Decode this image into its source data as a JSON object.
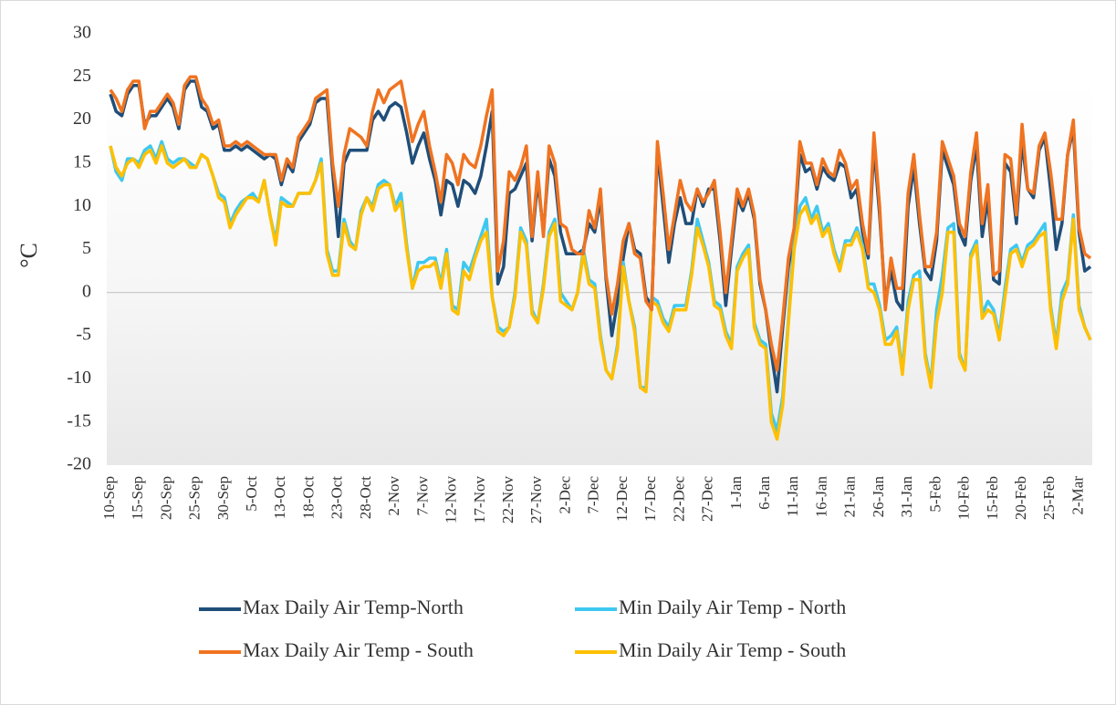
{
  "chart_data": {
    "type": "line",
    "ylabel": "°C",
    "ylim": [
      -20,
      30
    ],
    "yticks": [
      -20,
      -15,
      -10,
      -5,
      0,
      5,
      10,
      15,
      20,
      25,
      30
    ],
    "categories": [
      "10-Sep",
      null,
      null,
      null,
      null,
      "15-Sep",
      null,
      null,
      null,
      null,
      "20-Sep",
      null,
      null,
      null,
      null,
      "25-Sep",
      null,
      null,
      null,
      null,
      "30-Sep",
      null,
      null,
      null,
      null,
      "5-Oct",
      null,
      null,
      null,
      null,
      "13-Oct",
      null,
      null,
      null,
      null,
      "18-Oct",
      null,
      null,
      null,
      null,
      "23-Oct",
      null,
      null,
      null,
      null,
      "28-Oct",
      null,
      null,
      null,
      null,
      "2-Nov",
      null,
      null,
      null,
      null,
      "7-Nov",
      null,
      null,
      null,
      null,
      "12-Nov",
      null,
      null,
      null,
      null,
      "17-Nov",
      null,
      null,
      null,
      null,
      "22-Nov",
      null,
      null,
      null,
      null,
      "27-Nov",
      null,
      null,
      null,
      null,
      "2-Dec",
      null,
      null,
      null,
      null,
      "7-Dec",
      null,
      null,
      null,
      null,
      "12-Dec",
      null,
      null,
      null,
      null,
      "17-Dec",
      null,
      null,
      null,
      null,
      "22-Dec",
      null,
      null,
      null,
      null,
      "27-Dec",
      null,
      null,
      null,
      null,
      "1-Jan",
      null,
      null,
      null,
      null,
      "6-Jan",
      null,
      null,
      null,
      null,
      "11-Jan",
      null,
      null,
      null,
      null,
      "16-Jan",
      null,
      null,
      null,
      null,
      "21-Jan",
      null,
      null,
      null,
      null,
      "26-Jan",
      null,
      null,
      null,
      null,
      "31-Jan",
      null,
      null,
      null,
      null,
      "5-Feb",
      null,
      null,
      null,
      null,
      "10-Feb",
      null,
      null,
      null,
      null,
      "15-Feb",
      null,
      null,
      null,
      null,
      "20-Feb",
      null,
      null,
      null,
      null,
      "25-Feb",
      null,
      null,
      null,
      null,
      "2-Mar",
      null,
      null
    ],
    "series": [
      {
        "name": "Max Daily Air Temp-North",
        "color": "#1f4e79",
        "values": [
          23,
          21,
          20.5,
          23,
          24,
          24,
          19.5,
          20.5,
          20.5,
          21.5,
          22.5,
          21.5,
          19,
          23.5,
          24.5,
          24.5,
          21.5,
          21,
          19,
          19.5,
          16.5,
          16.5,
          17,
          16.5,
          17,
          16.5,
          16,
          15.5,
          16,
          15.5,
          12.5,
          15,
          14,
          17.5,
          18.5,
          19.5,
          22,
          22.5,
          22.5,
          14,
          6.5,
          15,
          16.5,
          16.5,
          16.5,
          16.5,
          20,
          21,
          20,
          21.5,
          22,
          21.5,
          18.5,
          15,
          17,
          18.5,
          15.5,
          13,
          9,
          13,
          12.5,
          10,
          13,
          12.5,
          11.5,
          13.5,
          17,
          21,
          1,
          3,
          11.5,
          12,
          13.5,
          15,
          6,
          13,
          7,
          15.5,
          13.5,
          7,
          4.5,
          4.5,
          4.5,
          5,
          8,
          7,
          11,
          1.5,
          -5,
          -1,
          4,
          8,
          5,
          4.5,
          -0.5,
          -1.5,
          16.5,
          10,
          3.5,
          8,
          11,
          8,
          8,
          12,
          10,
          12,
          12,
          6,
          -1.5,
          5,
          11,
          9.5,
          11.5,
          8.5,
          1,
          -2,
          -7,
          -11.5,
          -4,
          3,
          7,
          16,
          14,
          14.5,
          12,
          14.5,
          13.5,
          13,
          15,
          14.5,
          11,
          12,
          7,
          4,
          17,
          9,
          -1,
          2.5,
          -1,
          -2,
          10,
          14.5,
          8,
          2.5,
          1.5,
          6,
          16.5,
          14.5,
          12.5,
          7,
          5.5,
          13,
          17,
          6.5,
          11,
          1.5,
          1,
          15,
          14,
          8,
          17.5,
          12,
          11,
          16.5,
          18,
          12,
          5,
          8,
          16,
          19,
          7,
          2.5,
          3
        ]
      },
      {
        "name": "Min Daily Air Temp - North",
        "color": "#3ec8f0",
        "values": [
          17,
          14,
          13,
          15.5,
          15.5,
          15,
          16.5,
          17,
          15.5,
          17.5,
          15.5,
          15,
          15.5,
          15.5,
          15,
          14.5,
          16,
          15.5,
          13.5,
          11.5,
          11,
          8,
          9.5,
          10.5,
          11,
          11.5,
          10.5,
          13,
          9,
          6,
          11,
          10.5,
          10,
          11.5,
          11.5,
          11.5,
          13,
          15.5,
          5,
          2.5,
          2.5,
          8.5,
          6,
          5,
          9.5,
          11,
          10,
          12.5,
          13,
          12.5,
          10,
          11.5,
          5.5,
          0.5,
          3.5,
          3.5,
          4,
          4,
          1,
          5,
          -1.5,
          -2,
          3.5,
          2.5,
          4.5,
          6.5,
          8.5,
          -0.5,
          -4,
          -4.5,
          -4,
          0,
          7.5,
          6,
          -2,
          -3.5,
          1,
          7,
          8.5,
          0,
          -1,
          -2,
          0,
          5,
          1.5,
          1,
          -5,
          -9,
          -10,
          -6,
          3.5,
          -1,
          -4,
          -11,
          -11,
          -0.5,
          -1,
          -3,
          -4,
          -1.5,
          -1.5,
          -1.5,
          2.5,
          8.5,
          6,
          3.5,
          -1,
          -1.5,
          -4.5,
          -6,
          3,
          4.5,
          5.5,
          -3.5,
          -5.5,
          -6,
          -14,
          -16,
          -12,
          -3,
          6,
          10,
          11,
          8.5,
          10,
          7,
          8,
          5,
          3,
          6,
          6,
          7.5,
          5.5,
          1,
          1,
          -1.5,
          -5.5,
          -5,
          -4,
          -9,
          -1,
          2,
          2.5,
          -7,
          -10.5,
          -2,
          2,
          7.5,
          8,
          -7,
          -9,
          4.5,
          6,
          -2.5,
          -1,
          -2,
          -5,
          0.5,
          5,
          5.5,
          3.5,
          5.5,
          6,
          7,
          8,
          -1.5,
          -6,
          0,
          1.5,
          9,
          -1.5,
          -4,
          -5.5
        ]
      },
      {
        "name": "Max Daily Air Temp - South",
        "color": "#f07320",
        "values": [
          23.5,
          22.5,
          21,
          23.5,
          24.5,
          24.5,
          19,
          21,
          21,
          22,
          23,
          22,
          19.5,
          24,
          25,
          25,
          22.5,
          21.5,
          19.5,
          20,
          17,
          17,
          17.5,
          17,
          17.5,
          17,
          16.5,
          16,
          16,
          16,
          13,
          15.5,
          14.5,
          18,
          19,
          20,
          22.5,
          23,
          23.5,
          15,
          10,
          16,
          19,
          18.5,
          18,
          17,
          21,
          23.5,
          22,
          23.5,
          24,
          24.5,
          21,
          17.5,
          19.5,
          21,
          17,
          14,
          10.5,
          16,
          15,
          12.5,
          16,
          15,
          14.5,
          17,
          20.5,
          23.5,
          2.5,
          6,
          14,
          13,
          14.5,
          17,
          6.5,
          14,
          6.5,
          17,
          15,
          8,
          7.5,
          5,
          4.5,
          4.5,
          9.5,
          7.5,
          12,
          2,
          -2.5,
          1,
          6,
          8,
          4.5,
          4,
          -1,
          -2,
          17.5,
          11.5,
          5,
          9,
          13,
          10.5,
          9.5,
          12,
          10.5,
          11.5,
          13,
          7,
          0,
          6,
          12,
          10,
          12,
          9,
          1.5,
          -2,
          -6,
          -9,
          -3,
          4,
          7.5,
          17.5,
          15,
          15,
          12.5,
          15.5,
          14,
          13.5,
          16.5,
          15,
          12,
          13,
          8,
          4.5,
          18.5,
          10,
          -2,
          4,
          0.5,
          0.5,
          11.5,
          16,
          9,
          3,
          3,
          7,
          17.5,
          15.5,
          13.5,
          8,
          6.5,
          14,
          18.5,
          8,
          12.5,
          2,
          2.5,
          16,
          15.5,
          9,
          19.5,
          12,
          11.5,
          17,
          18.5,
          14,
          8.5,
          8.5,
          16,
          20,
          7.5,
          4.5,
          4
        ]
      },
      {
        "name": "Min Daily Air Temp - South",
        "color": "#ffc000",
        "values": [
          17,
          14.5,
          13.5,
          15,
          15.5,
          14.5,
          16,
          16.5,
          15,
          17,
          15,
          14.5,
          15,
          15.5,
          14.5,
          14.5,
          16,
          15.5,
          13.5,
          11,
          10.5,
          7.5,
          9,
          10,
          11,
          11,
          10.5,
          13,
          9,
          5.5,
          10.5,
          10,
          10,
          11.5,
          11.5,
          11.5,
          13,
          15,
          4.5,
          2,
          2,
          8,
          5.5,
          5,
          9,
          11,
          9.5,
          12,
          12.5,
          12.5,
          9.5,
          10.5,
          5,
          0.5,
          2.5,
          3,
          3,
          3.5,
          0.5,
          4.5,
          -2,
          -2.5,
          2.5,
          1.5,
          4,
          6,
          7,
          -0.5,
          -4.5,
          -5,
          -4,
          -0.5,
          7,
          5.5,
          -2.5,
          -3.5,
          0.5,
          6.5,
          8,
          -1,
          -1.5,
          -2,
          0,
          4.5,
          1,
          0.5,
          -5.5,
          -9,
          -10,
          -6.5,
          3,
          -1,
          -4.5,
          -11,
          -11.5,
          -1,
          -1.5,
          -3.5,
          -4.5,
          -2,
          -2,
          -2,
          2,
          7.5,
          5.5,
          3,
          -1.5,
          -2,
          -5,
          -6.5,
          2.5,
          4,
          5,
          -4,
          -6,
          -6.5,
          -15,
          -17,
          -13,
          -3.5,
          5,
          9,
          10,
          8,
          9,
          6.5,
          7.5,
          4.5,
          2.5,
          5.5,
          5.5,
          7,
          5,
          0.5,
          0,
          -2,
          -6,
          -6,
          -4.5,
          -9.5,
          -2,
          1.5,
          1.5,
          -7.5,
          -11,
          -3.5,
          0,
          7,
          7,
          -7.5,
          -9,
          4,
          5.5,
          -3,
          -2,
          -2.5,
          -5.5,
          -0.5,
          4.5,
          5,
          3,
          5,
          5.5,
          6.5,
          7,
          -2,
          -6.5,
          -1,
          1,
          8.5,
          -2,
          -4,
          -5.5
        ]
      }
    ]
  }
}
